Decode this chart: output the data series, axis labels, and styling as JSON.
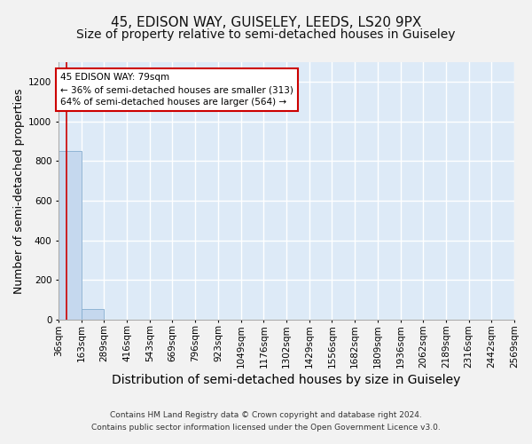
{
  "title": "45, EDISON WAY, GUISELEY, LEEDS, LS20 9PX",
  "subtitle": "Size of property relative to semi-detached houses in Guiseley",
  "xlabel": "Distribution of semi-detached houses by size in Guiseley",
  "ylabel": "Number of semi-detached properties",
  "footer_line1": "Contains HM Land Registry data © Crown copyright and database right 2024.",
  "footer_line2": "Contains public sector information licensed under the Open Government Licence v3.0.",
  "bin_edges": [
    36,
    163,
    289,
    416,
    543,
    669,
    796,
    923,
    1049,
    1176,
    1302,
    1429,
    1556,
    1682,
    1809,
    1936,
    2062,
    2189,
    2316,
    2442,
    2569
  ],
  "bin_labels": [
    "36sqm",
    "163sqm",
    "289sqm",
    "416sqm",
    "543sqm",
    "669sqm",
    "796sqm",
    "923sqm",
    "1049sqm",
    "1176sqm",
    "1302sqm",
    "1429sqm",
    "1556sqm",
    "1682sqm",
    "1809sqm",
    "1936sqm",
    "2062sqm",
    "2189sqm",
    "2316sqm",
    "2442sqm",
    "2569sqm"
  ],
  "bar_values": [
    851,
    52,
    0,
    0,
    0,
    0,
    0,
    0,
    0,
    0,
    0,
    0,
    0,
    0,
    0,
    0,
    0,
    0,
    0,
    0
  ],
  "bar_color": "#c5d8ee",
  "bar_edge_color": "#85aed0",
  "property_size": 79,
  "vline_color": "#cc0000",
  "annotation_smaller_pct": 36,
  "annotation_smaller_count": 313,
  "annotation_larger_pct": 64,
  "annotation_larger_count": 564,
  "annotation_box_color": "#ffffff",
  "annotation_box_edge_color": "#cc0000",
  "ylim": [
    0,
    1300
  ],
  "yticks": [
    0,
    200,
    400,
    600,
    800,
    1000,
    1200
  ],
  "background_color": "#ddeaf7",
  "grid_color": "#ffffff",
  "fig_bg_color": "#f2f2f2",
  "title_fontsize": 11,
  "subtitle_fontsize": 10,
  "axis_label_fontsize": 9,
  "tick_fontsize": 7.5,
  "footer_fontsize": 6.5
}
